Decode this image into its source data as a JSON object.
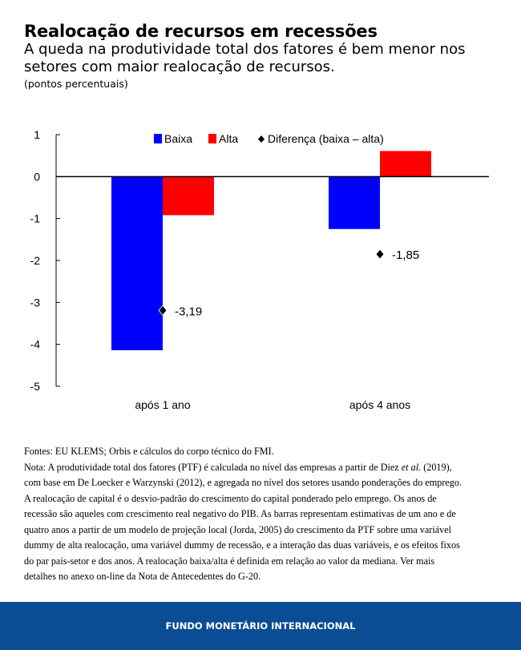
{
  "header": {
    "title": "Realocação de recursos em recessões",
    "subtitle": "A queda na produtividade total dos fatores é bem menor nos setores com maior realocação de recursos.",
    "units": "(pontos percentuais)"
  },
  "chart_data": {
    "type": "bar",
    "title": "",
    "xlabel": "",
    "ylabel": "",
    "categories": [
      "após 1 ano",
      "após 4 anos"
    ],
    "series": [
      {
        "name": "Baixa",
        "type": "bar",
        "color": "#0000ff",
        "values": [
          -4.14,
          -1.25
        ]
      },
      {
        "name": "Alta",
        "type": "bar",
        "color": "#ff0000",
        "values": [
          -0.92,
          0.61
        ]
      },
      {
        "name": "Diferença (baixa – alta)",
        "type": "scatter",
        "marker": "diamond",
        "color": "#000000",
        "values": [
          -3.19,
          -1.85
        ],
        "labels": [
          "-3,19",
          "-1,85"
        ]
      }
    ],
    "ylim": [
      -5,
      1
    ],
    "yticks": [
      1,
      0,
      -1,
      -2,
      -3,
      -4,
      -5
    ],
    "ytick_labels": [
      "1",
      "0",
      "-1",
      "-2",
      "-3",
      "-4",
      "-5"
    ],
    "grid": false,
    "legend_position": "top-center"
  },
  "notes": {
    "sources": "Fontes: EU KLEMS; Orbis e cálculos do corpo técnico do FMI.",
    "note_first_pre": "Nota: A produtividade total dos fatores (PTF) é calculada no nível das empresas a partir de Diez ",
    "note_first_italic": "et al.",
    "note_first_post": " (2019),",
    "note_lines": [
      "com base em De Loecker e Warzynski (2012), e agregada no nível dos setores usando ponderações do emprego.",
      "A realocação de capital é o desvio-padrão do crescimento do capital ponderado pelo emprego. Os anos de",
      "recessão são aqueles com crescimento real negativo do PIB. As barras representam estimativas de um ano e de",
      "quatro anos a partir de um modelo de projeção local (Jorda, 2005) do crescimento da PTF sobre uma variável",
      "dummy de alta realocação, uma variável dummy de recessão, e a interação das duas variáveis, e os efeitos fixos",
      "do par país-setor e dos anos. A realocação baixa/alta é definida em relação ao valor da mediana. Ver mais",
      "detalhes no anexo on-line da Nota de Antecedentes do G-20."
    ]
  },
  "footer": {
    "text": "FUNDO MONETÁRIO INTERNACIONAL",
    "color": "#0a4d94"
  }
}
